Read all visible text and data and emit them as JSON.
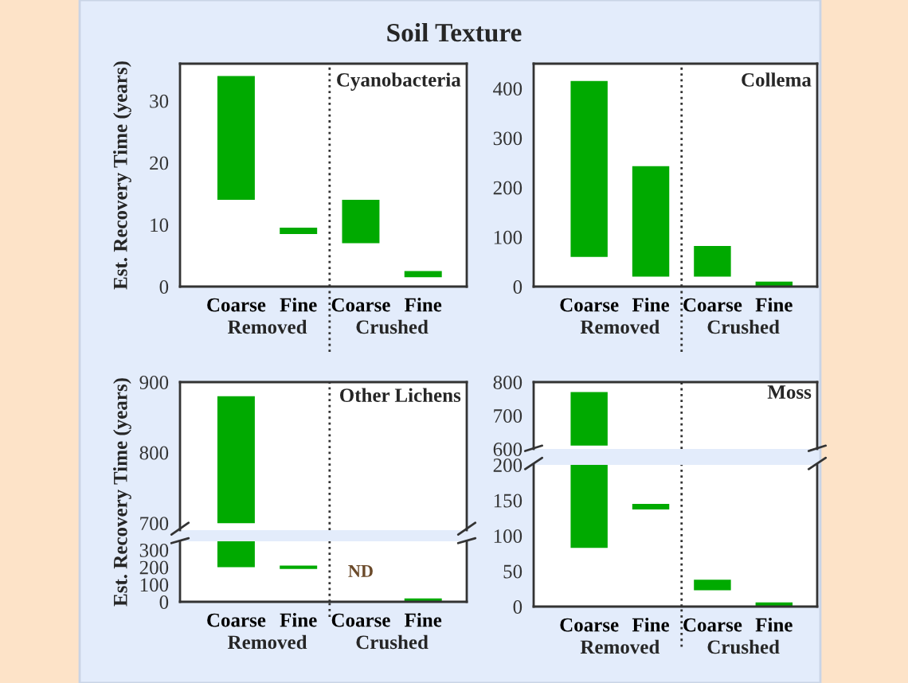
{
  "chart_data": [
    {
      "type": "bar",
      "title": "Soil Texture",
      "ylabel": "Est. Recovery Time (years)",
      "categories": [
        "Coarse",
        "Fine",
        "Coarse",
        "Fine"
      ],
      "base": [
        14,
        8.5,
        7,
        1.5
      ],
      "values": [
        20,
        1,
        7,
        1
      ],
      "color": "#00aa00",
      "ylim": [
        0,
        36
      ],
      "yticks": [
        0,
        10,
        20,
        30
      ],
      "annotations": [
        "Cyanobacteria",
        "Removed",
        "Crushed"
      ]
    },
    {
      "type": "bar",
      "categories": [
        "Coarse",
        "Fine",
        "Coarse",
        "Fine"
      ],
      "base": [
        60,
        20,
        20,
        0
      ],
      "values": [
        355,
        223,
        62,
        10
      ],
      "color": "#00aa00",
      "ylim": [
        0,
        450
      ],
      "yticks": [
        0,
        100,
        200,
        300,
        400
      ],
      "annotations": [
        "Collema",
        "Removed",
        "Crushed"
      ]
    },
    {
      "type": "bar",
      "categories": [
        null,
        null,
        null,
        null
      ],
      "base": [
        700,
        null,
        null,
        null
      ],
      "values": [
        180,
        null,
        null,
        null
      ],
      "color": "#00aa00",
      "ylim": [
        690,
        900
      ],
      "yticks": [
        700,
        800,
        900
      ],
      "tick_labels": "y",
      "annotations": [
        "Other Lichens"
      ]
    },
    {
      "type": "bar",
      "ylabel": "Est. Recovery Time (years)",
      "categories": [
        "Coarse",
        "Fine",
        "Coarse",
        "Fine"
      ],
      "base": [
        200,
        190,
        null,
        0
      ],
      "values": [
        150,
        20,
        null,
        20
      ],
      "value_labels": [
        null,
        null,
        "ND",
        null
      ],
      "color": "#00aa00",
      "ylim": [
        0,
        350
      ],
      "yticks": [
        0,
        100,
        200,
        300
      ],
      "annotations": [
        "Removed",
        "Crushed"
      ]
    },
    {
      "type": "bar",
      "categories": [
        null,
        null,
        null,
        null
      ],
      "base": [
        610,
        null,
        null,
        null
      ],
      "values": [
        160,
        null,
        null,
        null
      ],
      "color": "#00aa00",
      "ylim": [
        600,
        800
      ],
      "yticks": [
        600,
        700,
        800
      ],
      "tick_labels": "y",
      "annotations": [
        "Moss"
      ]
    },
    {
      "type": "bar",
      "categories": [
        "Coarse",
        "Fine",
        "Coarse",
        "Fine"
      ],
      "base": [
        83,
        137,
        23,
        0
      ],
      "values": [
        117,
        8,
        15,
        6
      ],
      "color": "#00aa00",
      "ylim": [
        0,
        200
      ],
      "yticks": [
        0,
        50,
        100,
        150,
        200
      ],
      "annotations": [
        "Removed",
        "Crushed"
      ]
    }
  ]
}
